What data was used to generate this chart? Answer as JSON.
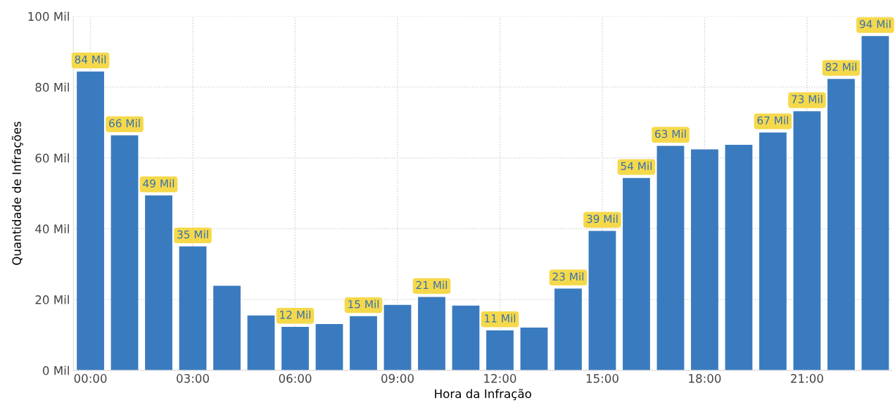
{
  "chart_data": {
    "type": "bar",
    "xlabel": "Hora da Infração",
    "ylabel": "Quantidade de Infrações",
    "x": [
      0,
      1,
      2,
      3,
      4,
      5,
      6,
      7,
      8,
      9,
      10,
      11,
      12,
      13,
      14,
      15,
      16,
      17,
      18,
      19,
      20,
      21,
      22,
      23
    ],
    "values": [
      84.4,
      66.4,
      49.4,
      35.0,
      23.9,
      15.5,
      12.3,
      13.1,
      15.3,
      18.5,
      20.7,
      18.3,
      11.3,
      12.1,
      23.1,
      39.4,
      54.3,
      63.4,
      62.4,
      63.7,
      67.2,
      73.2,
      82.3,
      94.4
    ],
    "value_labels": [
      "84 Mil",
      "66 Mil",
      "49 Mil",
      "35 Mil",
      null,
      null,
      "12 Mil",
      null,
      "15 Mil",
      null,
      "21 Mil",
      null,
      "11 Mil",
      null,
      "23 Mil",
      "39 Mil",
      "54 Mil",
      "63 Mil",
      null,
      null,
      "67 Mil",
      "73 Mil",
      "82 Mil",
      "94 Mil"
    ],
    "color": "#3a7bc0",
    "xlim": [
      -0.5,
      23.5
    ],
    "xticks": [
      {
        "value": 0,
        "label": "00:00"
      },
      {
        "value": 3,
        "label": "03:00"
      },
      {
        "value": 6,
        "label": "06:00"
      },
      {
        "value": 9,
        "label": "09:00"
      },
      {
        "value": 12,
        "label": "12:00"
      },
      {
        "value": 15,
        "label": "15:00"
      },
      {
        "value": 18,
        "label": "18:00"
      },
      {
        "value": 21,
        "label": "21:00"
      }
    ],
    "ylim": [
      0,
      100
    ],
    "yticks": [
      {
        "value": 0,
        "label": "0 Mil"
      },
      {
        "value": 20,
        "label": "20 Mil"
      },
      {
        "value": 40,
        "label": "40 Mil"
      },
      {
        "value": 60,
        "label": "60 Mil"
      },
      {
        "value": 80,
        "label": "80 Mil"
      },
      {
        "value": 100,
        "label": "100 Mil"
      }
    ],
    "grid": true,
    "legend": false
  }
}
